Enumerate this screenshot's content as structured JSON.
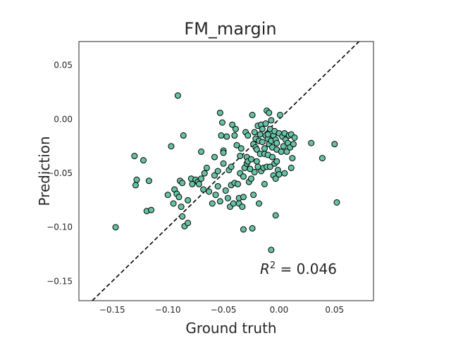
{
  "chart_data": {
    "type": "scatter",
    "title": "FM_margin",
    "xlabel": "Ground truth",
    "ylabel": "Prediction",
    "xlim": [
      -0.18,
      0.085
    ],
    "ylim": [
      -0.168,
      0.072
    ],
    "x_ticks": [
      -0.15,
      -0.1,
      -0.05,
      0.0,
      0.05
    ],
    "x_tick_labels": [
      "−0.15",
      "−0.10",
      "−0.05",
      "0.00",
      "0.05"
    ],
    "y_ticks": [
      0.05,
      0.0,
      -0.05,
      -0.1,
      -0.15
    ],
    "y_tick_labels": [
      "0.05",
      "0.00",
      "−0.05",
      "−0.10",
      "−0.15"
    ],
    "grid": false,
    "point_color": "#66c2a5",
    "point_edge_color": "#000000",
    "reference_line": {
      "style": "dashed",
      "slope": 1,
      "intercept": 0,
      "color": "#000000"
    },
    "annotation": {
      "text": "R² = 0.046",
      "base": "R",
      "sup": "2",
      "rest": " = 0.046",
      "position": "bottom-right"
    },
    "points": [
      [
        -0.147,
        -0.1
      ],
      [
        -0.13,
        -0.034
      ],
      [
        -0.128,
        -0.056
      ],
      [
        -0.129,
        -0.061
      ],
      [
        -0.122,
        -0.038
      ],
      [
        -0.119,
        -0.085
      ],
      [
        -0.117,
        -0.057
      ],
      [
        -0.115,
        -0.084
      ],
      [
        -0.1,
        -0.07
      ],
      [
        -0.097,
        -0.025
      ],
      [
        -0.095,
        -0.078
      ],
      [
        -0.094,
        -0.065
      ],
      [
        -0.092,
        -0.069
      ],
      [
        -0.09,
        -0.072
      ],
      [
        -0.091,
        0.022
      ],
      [
        -0.089,
        -0.057
      ],
      [
        -0.088,
        -0.081
      ],
      [
        -0.087,
        -0.059
      ],
      [
        -0.087,
        -0.09
      ],
      [
        -0.086,
        -0.015
      ],
      [
        -0.085,
        -0.099
      ],
      [
        -0.082,
        -0.096
      ],
      [
        -0.082,
        -0.075
      ],
      [
        -0.079,
        -0.055
      ],
      [
        -0.078,
        -0.06
      ],
      [
        -0.075,
        -0.056
      ],
      [
        -0.073,
        -0.058
      ],
      [
        -0.072,
        -0.06
      ],
      [
        -0.07,
        -0.055
      ],
      [
        -0.07,
        -0.03
      ],
      [
        -0.068,
        -0.065
      ],
      [
        -0.067,
        -0.05
      ],
      [
        -0.065,
        -0.045
      ],
      [
        -0.063,
        -0.067
      ],
      [
        -0.06,
        -0.078
      ],
      [
        -0.058,
        -0.035
      ],
      [
        -0.058,
        -0.052
      ],
      [
        -0.057,
        -0.07
      ],
      [
        -0.055,
        -0.048
      ],
      [
        -0.055,
        -0.062
      ],
      [
        -0.053,
        -0.076
      ],
      [
        -0.053,
        0.006
      ],
      [
        -0.052,
        -0.015
      ],
      [
        -0.051,
        -0.003
      ],
      [
        -0.05,
        -0.029
      ],
      [
        -0.05,
        -0.031
      ],
      [
        -0.05,
        -0.041
      ],
      [
        -0.048,
        -0.066
      ],
      [
        -0.047,
        -0.016
      ],
      [
        -0.046,
        -0.073
      ],
      [
        -0.045,
        -0.047
      ],
      [
        -0.044,
        -0.081
      ],
      [
        -0.043,
        -0.061
      ],
      [
        -0.043,
        -0.044
      ],
      [
        -0.042,
        -0.005
      ],
      [
        -0.041,
        -0.078
      ],
      [
        -0.04,
        -0.015
      ],
      [
        -0.04,
        -0.059
      ],
      [
        -0.039,
        -0.009
      ],
      [
        -0.038,
        -0.024
      ],
      [
        -0.037,
        -0.06
      ],
      [
        -0.036,
        -0.073
      ],
      [
        -0.036,
        -0.078
      ],
      [
        -0.035,
        -0.034
      ],
      [
        -0.035,
        -0.05
      ],
      [
        -0.034,
        -0.027
      ],
      [
        -0.033,
        -0.081
      ],
      [
        -0.032,
        -0.072
      ],
      [
        -0.032,
        -0.053
      ],
      [
        -0.032,
        -0.102
      ],
      [
        -0.031,
        -0.045
      ],
      [
        -0.03,
        -0.012
      ],
      [
        -0.029,
        -0.035
      ],
      [
        -0.029,
        -0.041
      ],
      [
        -0.028,
        -0.015
      ],
      [
        -0.028,
        -0.039
      ],
      [
        -0.027,
        -0.058
      ],
      [
        -0.026,
        -0.046
      ],
      [
        -0.025,
        -0.037
      ],
      [
        -0.025,
        -0.055
      ],
      [
        -0.024,
        -0.101
      ],
      [
        -0.024,
        0.004
      ],
      [
        -0.023,
        -0.07
      ],
      [
        -0.023,
        -0.023
      ],
      [
        -0.022,
        -0.049
      ],
      [
        -0.022,
        -0.012
      ],
      [
        -0.021,
        -0.018
      ],
      [
        -0.021,
        -0.026
      ],
      [
        -0.02,
        -0.028
      ],
      [
        -0.02,
        -0.039
      ],
      [
        -0.019,
        -0.006
      ],
      [
        -0.019,
        -0.044
      ],
      [
        -0.018,
        -0.02
      ],
      [
        -0.018,
        -0.078
      ],
      [
        -0.017,
        -0.014
      ],
      [
        -0.017,
        -0.032
      ],
      [
        -0.016,
        -0.048
      ],
      [
        -0.016,
        -0.005
      ],
      [
        -0.015,
        -0.021
      ],
      [
        -0.015,
        -0.009
      ],
      [
        -0.014,
        -0.045
      ],
      [
        -0.013,
        -0.032
      ],
      [
        -0.013,
        -0.027
      ],
      [
        -0.013,
        -0.06
      ],
      [
        -0.012,
        -0.015
      ],
      [
        -0.012,
        -0.004
      ],
      [
        -0.011,
        -0.044
      ],
      [
        -0.011,
        0.008
      ],
      [
        -0.01,
        -0.018
      ],
      [
        -0.01,
        -0.033
      ],
      [
        -0.01,
        -0.014
      ],
      [
        -0.009,
        -0.023
      ],
      [
        -0.009,
        0.006
      ],
      [
        -0.008,
        -0.009
      ],
      [
        -0.008,
        -0.044
      ],
      [
        -0.007,
        -0.02
      ],
      [
        -0.007,
        -0.001
      ],
      [
        -0.007,
        -0.121
      ],
      [
        -0.006,
        -0.035
      ],
      [
        -0.006,
        -0.026
      ],
      [
        -0.005,
        -0.052
      ],
      [
        -0.005,
        -0.015
      ],
      [
        -0.004,
        -0.011
      ],
      [
        -0.004,
        -0.041
      ],
      [
        -0.003,
        -0.019
      ],
      [
        -0.003,
        -0.089
      ],
      [
        -0.003,
        -0.055
      ],
      [
        -0.002,
        -0.022
      ],
      [
        -0.002,
        -0.039
      ],
      [
        -0.002,
        -0.028
      ],
      [
        -0.001,
        -0.047
      ],
      [
        0.0,
        -0.013
      ],
      [
        0.0,
        -0.051
      ],
      [
        0.001,
        0.004
      ],
      [
        0.002,
        -0.03
      ],
      [
        0.003,
        -0.016
      ],
      [
        0.004,
        -0.025
      ],
      [
        0.005,
        -0.013
      ],
      [
        0.005,
        -0.05
      ],
      [
        0.006,
        -0.019
      ],
      [
        0.007,
        -0.03
      ],
      [
        0.008,
        -0.022
      ],
      [
        0.009,
        -0.015
      ],
      [
        0.01,
        -0.026
      ],
      [
        0.011,
        -0.045
      ],
      [
        0.011,
        -0.014
      ],
      [
        0.012,
        -0.036
      ],
      [
        0.013,
        -0.023
      ],
      [
        0.014,
        -0.017
      ],
      [
        0.029,
        -0.022
      ],
      [
        0.039,
        -0.036
      ],
      [
        0.05,
        -0.023
      ],
      [
        0.052,
        -0.077
      ]
    ]
  }
}
